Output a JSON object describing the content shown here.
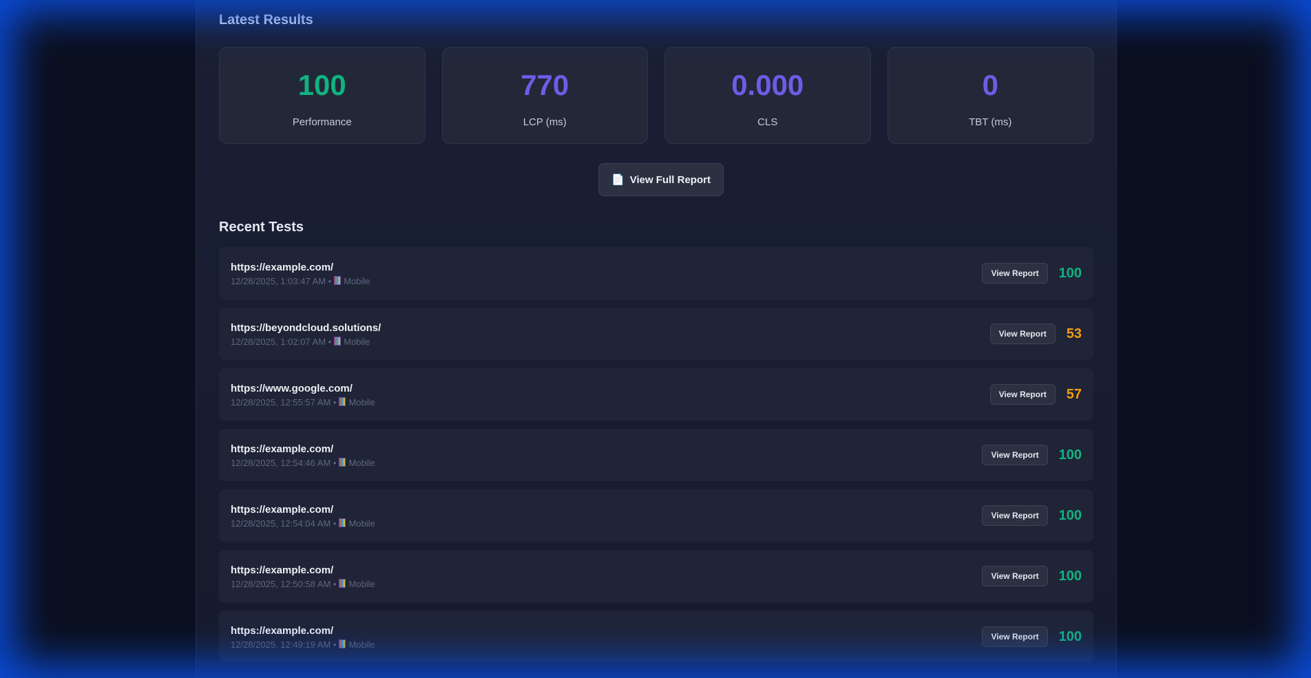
{
  "latest": {
    "title": "Latest Results",
    "cards": [
      {
        "value": "100",
        "label": "Performance",
        "color": "#10b47f"
      },
      {
        "value": "770",
        "label": "LCP (ms)",
        "color": "#6f5ce6"
      },
      {
        "value": "0.000",
        "label": "CLS",
        "color": "#6f5ce6"
      },
      {
        "value": "0",
        "label": "TBT (ms)",
        "color": "#6f5ce6"
      }
    ],
    "full_report_icon": "document-icon",
    "full_report_label": "View Full Report"
  },
  "recent": {
    "title": "Recent Tests",
    "view_label": "View Report",
    "device_icon": "mobile-phone-icon",
    "items": [
      {
        "url": "https://example.com/",
        "time": "12/28/2025, 1:03:47 AM",
        "device": "Mobile",
        "score": "100",
        "color": "#10b47f"
      },
      {
        "url": "https://beyondcloud.solutions/",
        "time": "12/28/2025, 1:02:07 AM",
        "device": "Mobile",
        "score": "53",
        "color": "#f29d0f"
      },
      {
        "url": "https://www.google.com/",
        "time": "12/28/2025, 12:55:57 AM",
        "device": "Mobile",
        "score": "57",
        "color": "#f29d0f"
      },
      {
        "url": "https://example.com/",
        "time": "12/28/2025, 12:54:46 AM",
        "device": "Mobile",
        "score": "100",
        "color": "#10b47f"
      },
      {
        "url": "https://example.com/",
        "time": "12/28/2025, 12:54:04 AM",
        "device": "Mobile",
        "score": "100",
        "color": "#10b47f"
      },
      {
        "url": "https://example.com/",
        "time": "12/28/2025, 12:50:58 AM",
        "device": "Mobile",
        "score": "100",
        "color": "#10b47f"
      },
      {
        "url": "https://example.com/",
        "time": "12/28/2025, 12:49:19 AM",
        "device": "Mobile",
        "score": "100",
        "color": "#10b47f"
      }
    ]
  }
}
